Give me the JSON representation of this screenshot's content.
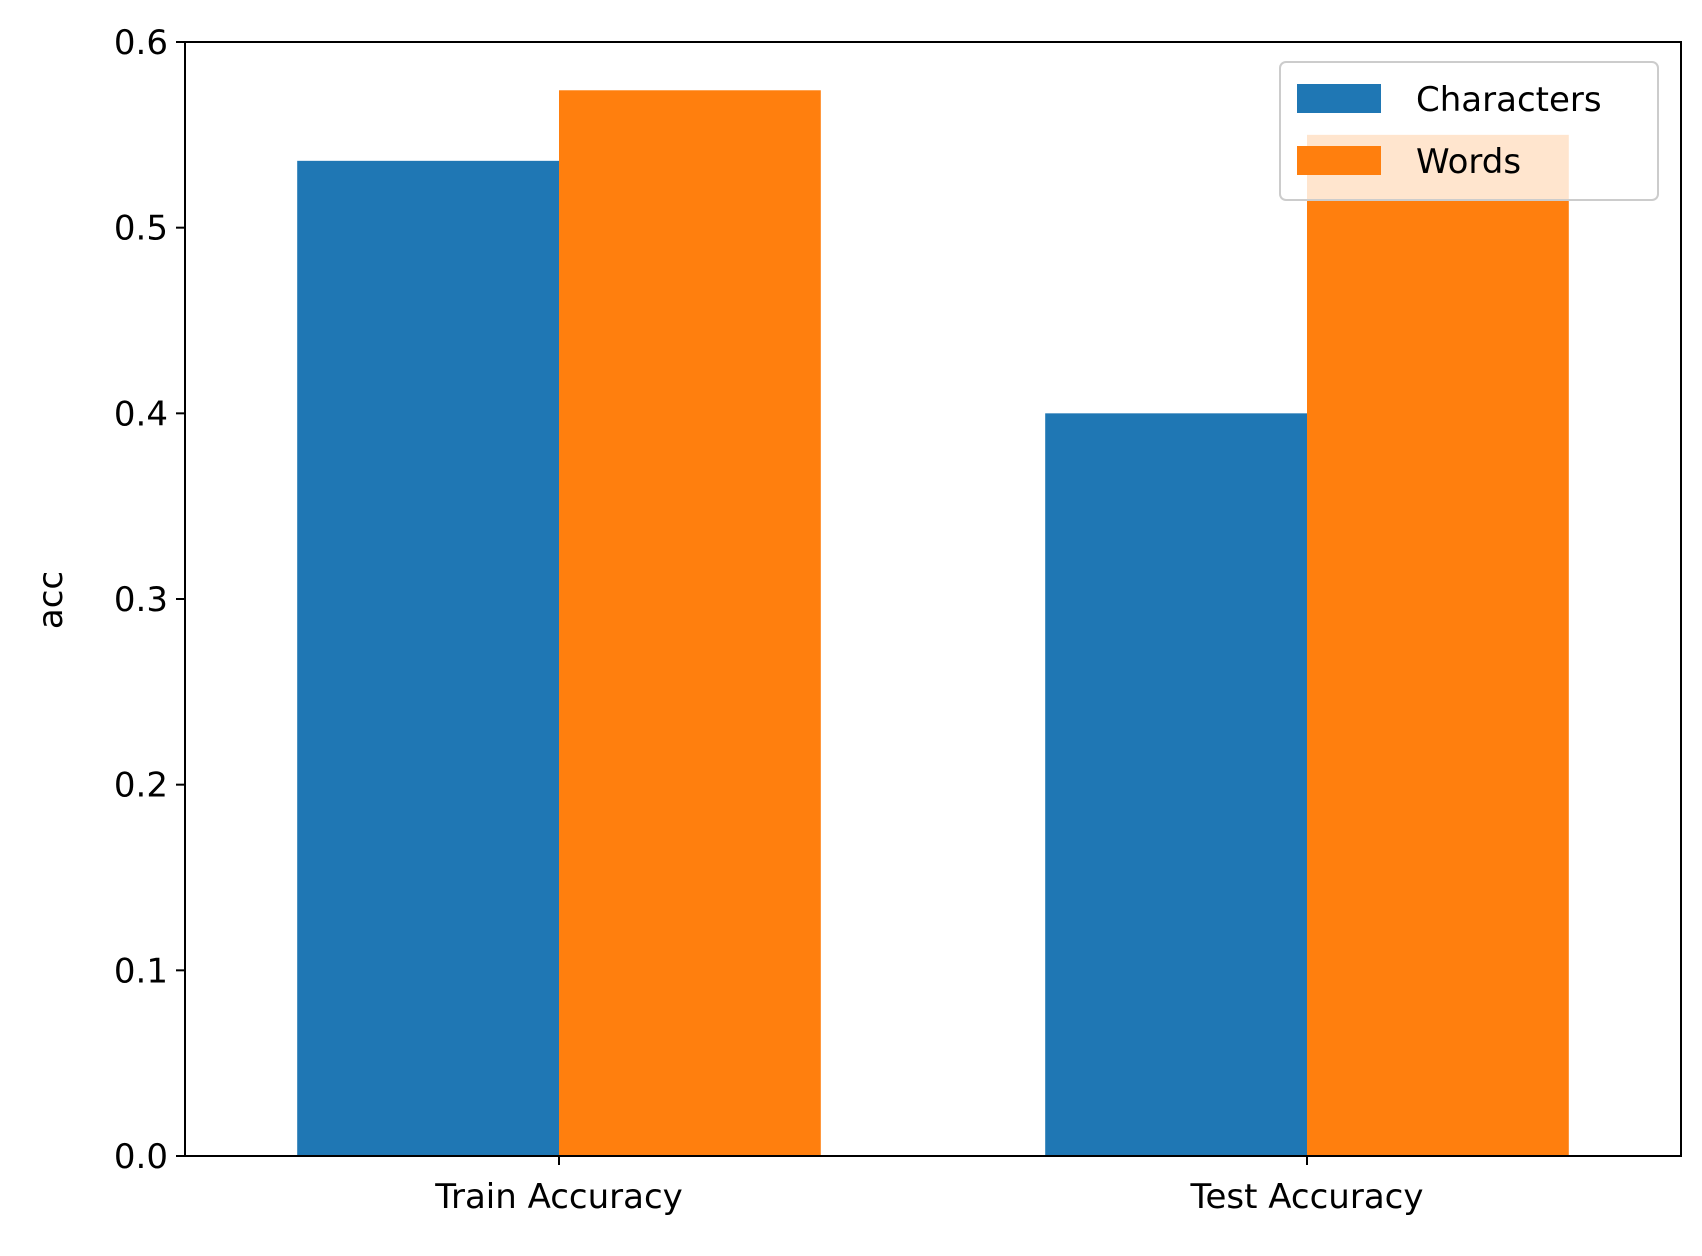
{
  "chart_data": {
    "type": "bar",
    "title": "",
    "xlabel": "",
    "ylabel": "acc",
    "categories": [
      "Train Accuracy",
      "Test Accuracy"
    ],
    "series": [
      {
        "name": "Characters",
        "color": "#1f77b4",
        "values": [
          0.536,
          0.4
        ]
      },
      {
        "name": "Words",
        "color": "#ff7f0e",
        "values": [
          0.574,
          0.55
        ]
      }
    ],
    "ylim": [
      0,
      0.6
    ],
    "yticks": [
      0.0,
      0.1,
      0.2,
      0.3,
      0.4,
      0.5,
      0.6
    ],
    "ytick_labels": [
      "0.0",
      "0.1",
      "0.2",
      "0.3",
      "0.4",
      "0.5",
      "0.6"
    ],
    "grid": false,
    "legend_position": "top-right"
  }
}
